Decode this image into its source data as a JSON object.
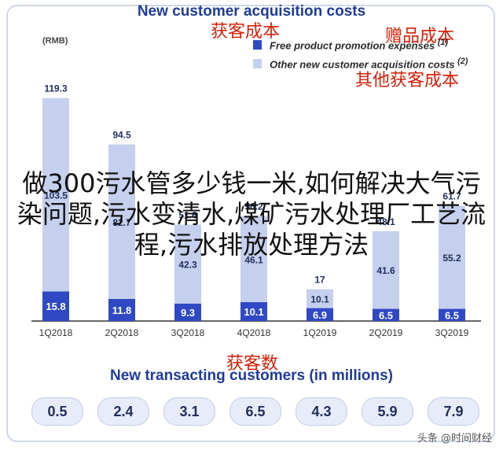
{
  "header": {
    "title": "New customer acquisition costs",
    "unit": "(RMB)",
    "cn_left": "获客成本",
    "cn_right": "赠品成本",
    "cn_right2": "其他获客成本"
  },
  "legend": {
    "items": [
      {
        "label": "Free product promotion expenses",
        "note": "(1)",
        "color": "#2f49c4"
      },
      {
        "label": "Other new customer acquisition costs",
        "note": "(2)",
        "color": "#c5d0ee"
      }
    ]
  },
  "overlay_text": "做300污水管多少钱一米,如何解决大气污染问题,污水变清水,煤矿污水处理厂工艺流程,污水排放处理方法",
  "chart_data": {
    "type": "bar",
    "stacked": true,
    "categories": [
      "1Q2018",
      "2Q2018",
      "3Q2018",
      "4Q2018",
      "1Q2019",
      "2Q2019",
      "3Q2019"
    ],
    "series": [
      {
        "name": "Free product promotion expenses",
        "values": [
          15.8,
          11.8,
          9.3,
          10.1,
          6.9,
          6.5,
          6.5
        ]
      },
      {
        "name": "Other new customer acquisition costs",
        "values": [
          103.5,
          82.7,
          42.3,
          46.1,
          10.1,
          41.6,
          55.2
        ]
      }
    ],
    "ylabel": "(RMB)",
    "ylim": [
      0,
      120
    ]
  },
  "customers": {
    "title_cn": "获客数",
    "title": "New transacting customers (in millions)",
    "values": [
      "0.5",
      "2.4",
      "3.1",
      "6.5",
      "4.3",
      "5.9",
      "7.9"
    ]
  },
  "watermark": "头条 @时间财经",
  "colors": {
    "primary": "#2f49c4",
    "secondary": "#c5d0ee",
    "accent_red": "#d81e06",
    "title_blue": "#1f3b9c"
  }
}
